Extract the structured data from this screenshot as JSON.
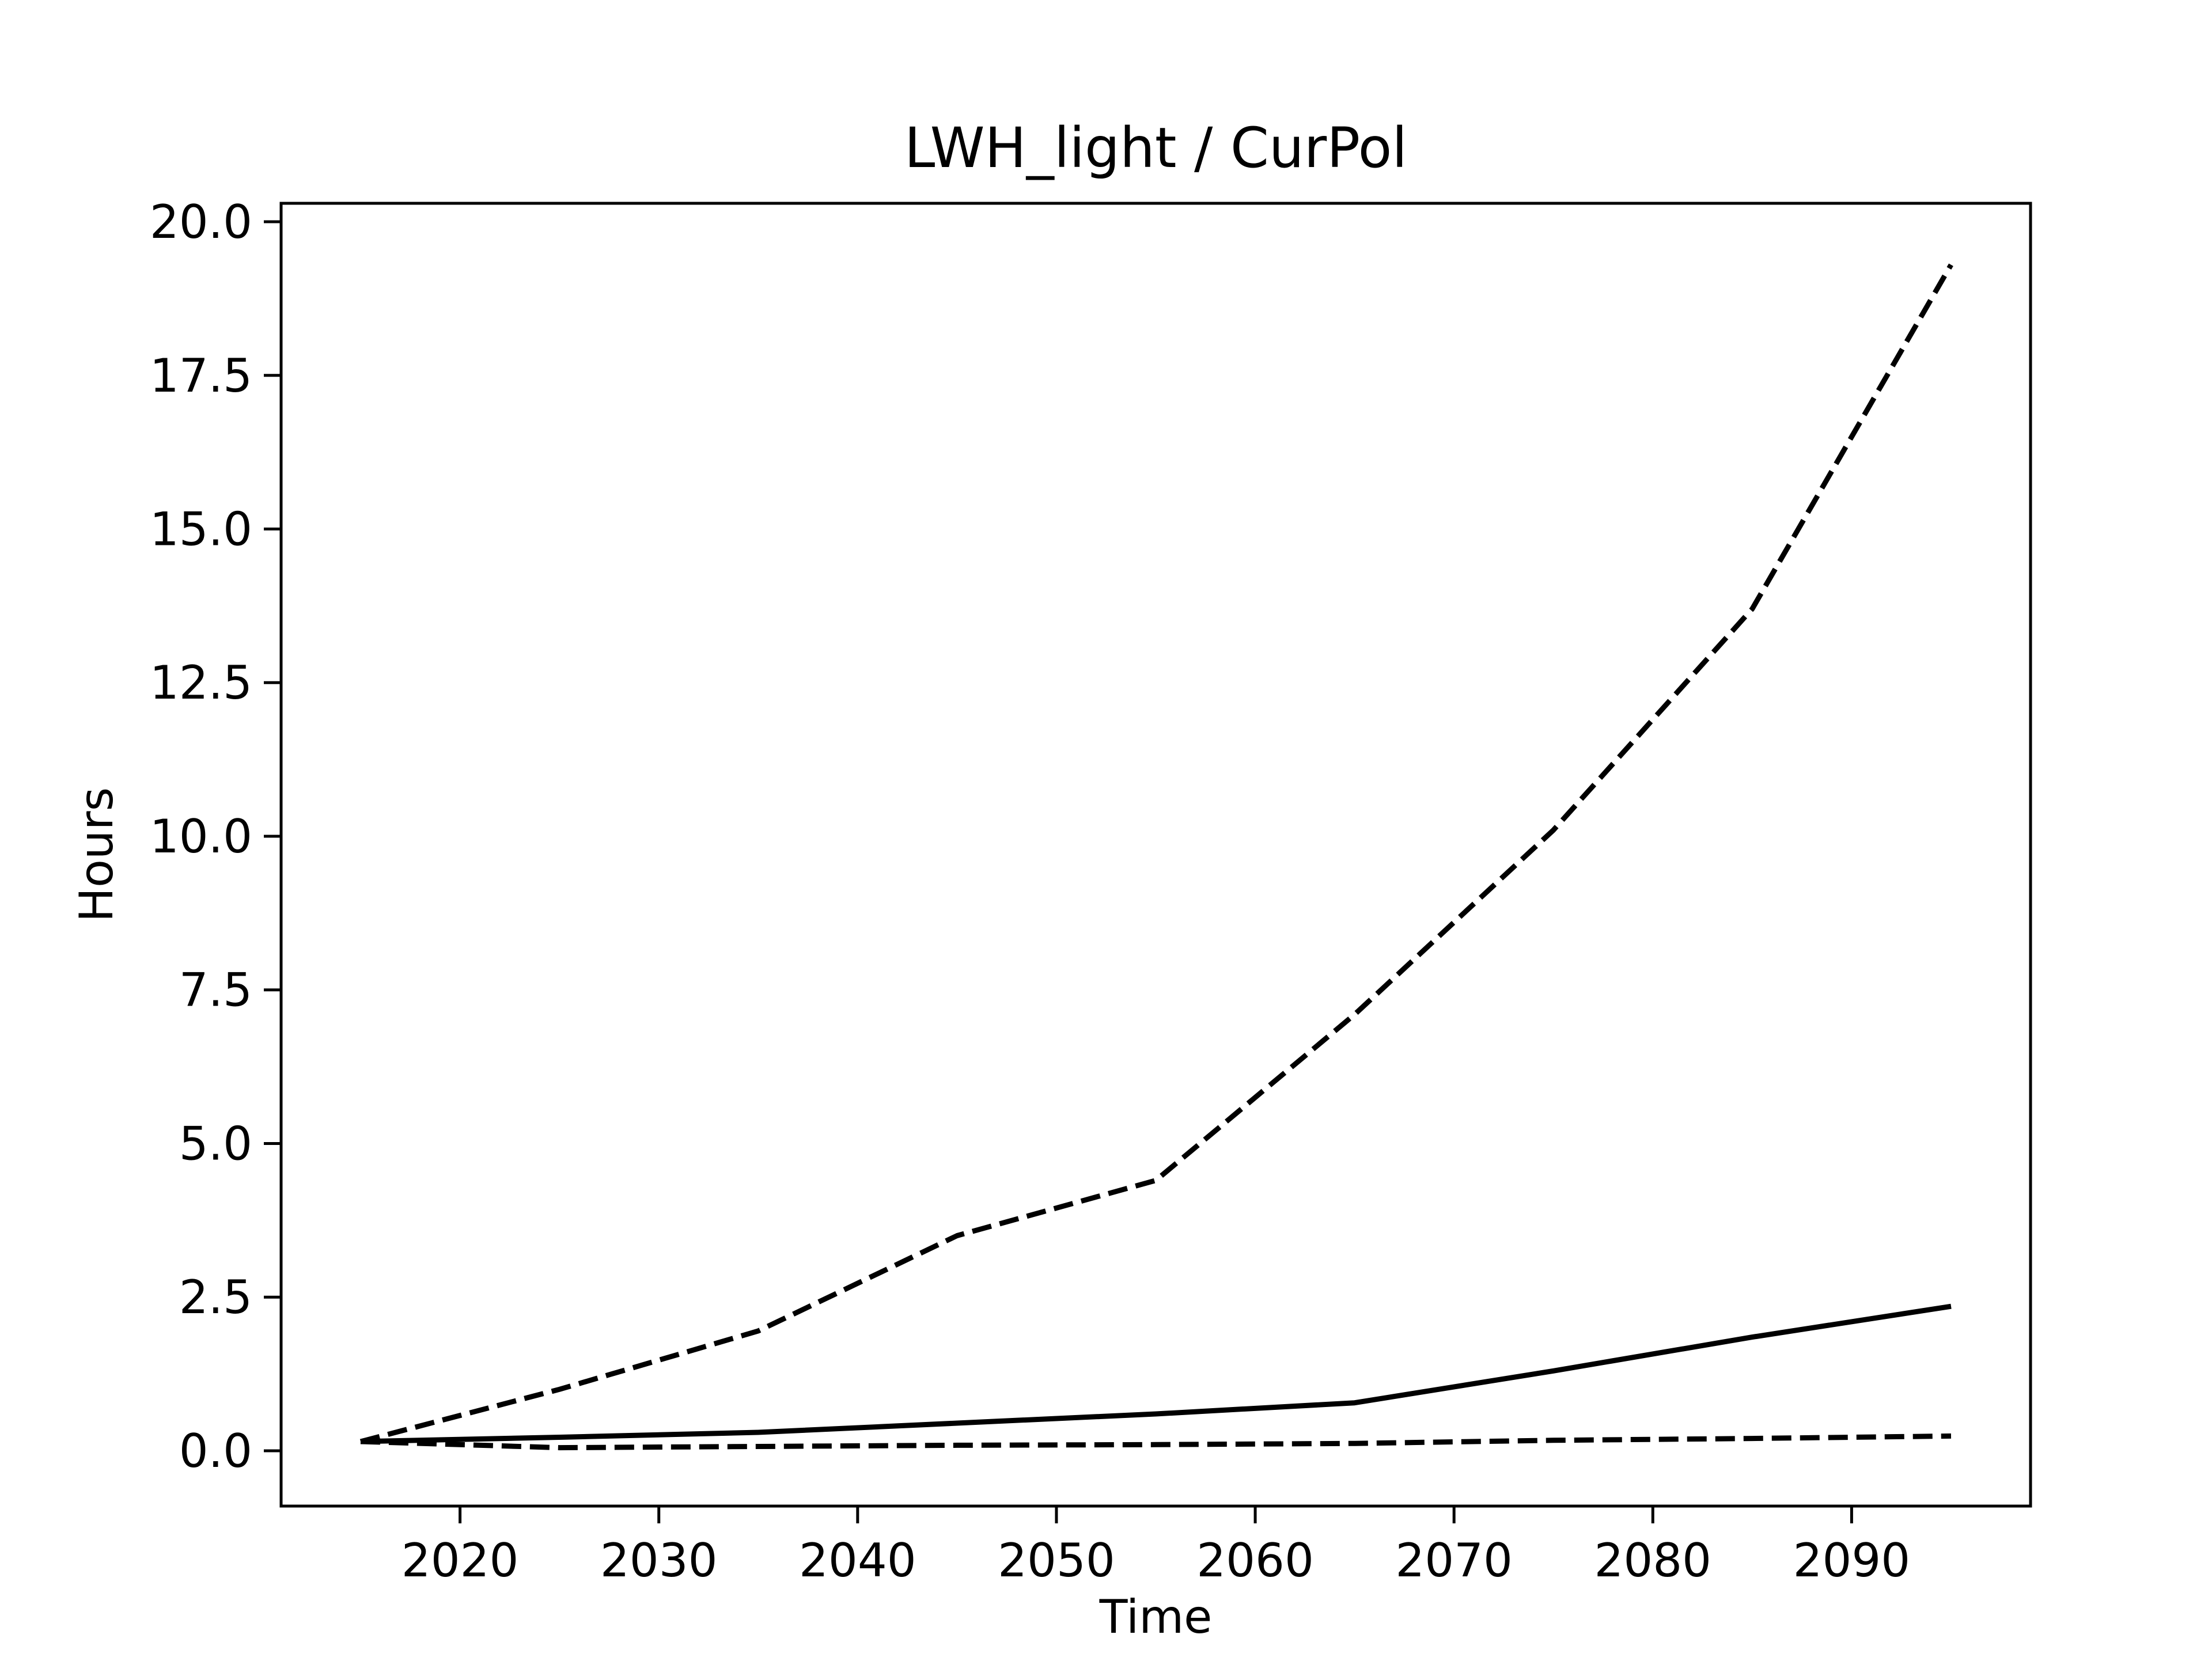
{
  "chart_data": {
    "type": "line",
    "title": "LWH_light / CurPol",
    "xlabel": "Time",
    "ylabel": "Hours",
    "xlim": [
      2011,
      2099
    ],
    "ylim": [
      -0.9,
      20.3
    ],
    "xticks": [
      2020,
      2030,
      2040,
      2050,
      2060,
      2070,
      2080,
      2090
    ],
    "yticks": [
      0.0,
      2.5,
      5.0,
      7.5,
      10.0,
      12.5,
      15.0,
      17.5,
      20.0
    ],
    "ytick_labels": [
      "0.0",
      "2.5",
      "5.0",
      "7.5",
      "10.0",
      "12.5",
      "15.0",
      "17.5",
      "20.0"
    ],
    "grid": false,
    "legend": "none",
    "colors": {
      "line": "#000000",
      "axes": "#000000",
      "background": "#ffffff"
    },
    "series": [
      {
        "style": "dashed",
        "x": [
          2015,
          2025,
          2035,
          2045,
          2055,
          2065,
          2075,
          2085,
          2095
        ],
        "y": [
          0.15,
          1.0,
          1.95,
          3.5,
          4.4,
          7.1,
          10.1,
          13.7,
          19.3
        ]
      },
      {
        "style": "solid",
        "x": [
          2015,
          2025,
          2035,
          2045,
          2055,
          2065,
          2075,
          2085,
          2095
        ],
        "y": [
          0.15,
          0.22,
          0.3,
          0.45,
          0.6,
          0.78,
          1.3,
          1.85,
          2.35
        ]
      },
      {
        "style": "dashed",
        "x": [
          2015,
          2025,
          2035,
          2045,
          2055,
          2065,
          2075,
          2085,
          2095
        ],
        "y": [
          0.15,
          0.05,
          0.07,
          0.09,
          0.1,
          0.12,
          0.17,
          0.2,
          0.24
        ]
      }
    ]
  }
}
